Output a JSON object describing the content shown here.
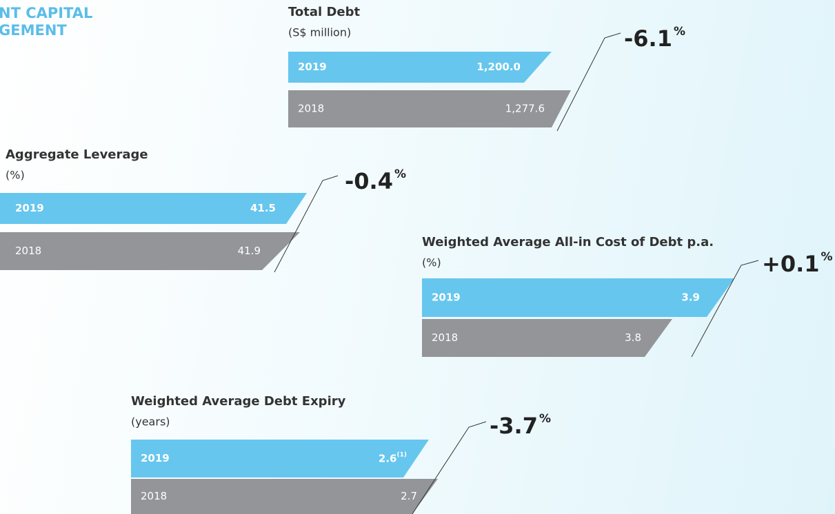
{
  "header": {
    "lines": [
      "NT CAPITAL",
      "GEMENT"
    ]
  },
  "panels": [
    {
      "title": "Total Debt",
      "unit": "(S$ million)",
      "rows": [
        {
          "year": "2019",
          "value": "1,200.0"
        },
        {
          "year": "2018",
          "value": "1,277.6"
        }
      ],
      "change": "-6.1",
      "change_unit": "%"
    },
    {
      "title": "Aggregate Leverage",
      "unit": "(%)",
      "rows": [
        {
          "year": "2019",
          "value": "41.5"
        },
        {
          "year": "2018",
          "value": "41.9"
        }
      ],
      "change": "-0.4",
      "change_unit": "%"
    },
    {
      "title": "Weighted Average All-in Cost of Debt p.a.",
      "unit": "(%)",
      "rows": [
        {
          "year": "2019",
          "value": "3.9"
        },
        {
          "year": "2018",
          "value": "3.8"
        }
      ],
      "change": "+0.1",
      "change_unit": "%"
    },
    {
      "title": "Weighted Average Debt Expiry",
      "unit": "(years)",
      "rows": [
        {
          "year": "2019",
          "value": "2.6",
          "note": "(1)"
        },
        {
          "year": "2018",
          "value": "2.7"
        }
      ],
      "change": "-3.7",
      "change_unit": "%"
    }
  ]
}
